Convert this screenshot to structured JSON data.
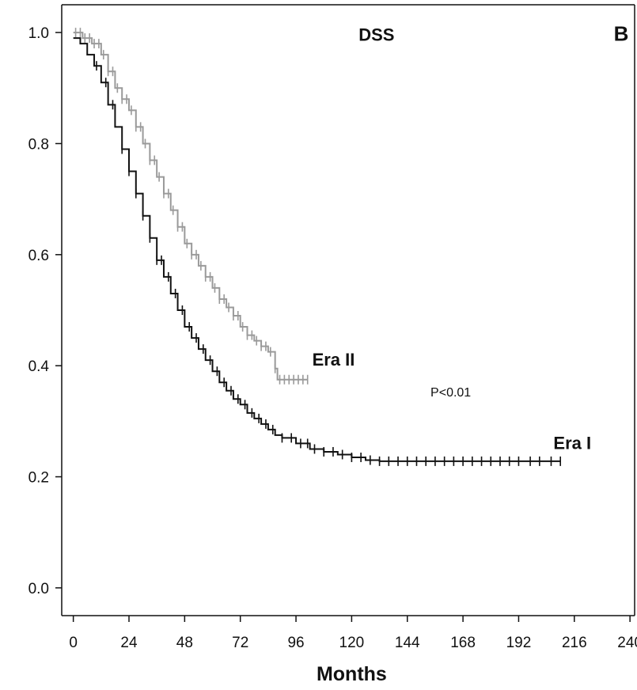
{
  "chart_data": {
    "type": "line",
    "title": "DSS",
    "panel_label": "B",
    "xlabel": "Months",
    "ylabel": "",
    "xlim": [
      -5,
      242
    ],
    "ylim": [
      -0.05,
      1.05
    ],
    "x_ticks": [
      0,
      24,
      48,
      72,
      96,
      120,
      144,
      168,
      192,
      216,
      240
    ],
    "x_tick_labels": [
      "0",
      "24",
      "48",
      "72",
      "96",
      "120",
      "144",
      "168",
      "192",
      "216",
      "240"
    ],
    "y_ticks": [
      0.0,
      0.2,
      0.4,
      0.6,
      0.8,
      1.0
    ],
    "y_tick_labels": [
      "0.0",
      "0.2",
      "0.4",
      "0.6",
      "0.8",
      "1.0"
    ],
    "annotations": [
      {
        "text": "P<0.01",
        "x": 154,
        "y": 0.345
      }
    ],
    "series": [
      {
        "name": "Era I",
        "color": "#111111",
        "step": true,
        "label_at": {
          "x": 207,
          "y": 0.25
        },
        "points": [
          [
            0,
            0.99
          ],
          [
            3,
            0.98
          ],
          [
            6,
            0.96
          ],
          [
            9,
            0.94
          ],
          [
            12,
            0.91
          ],
          [
            15,
            0.87
          ],
          [
            18,
            0.83
          ],
          [
            21,
            0.79
          ],
          [
            24,
            0.75
          ],
          [
            27,
            0.71
          ],
          [
            30,
            0.67
          ],
          [
            33,
            0.63
          ],
          [
            36,
            0.59
          ],
          [
            39,
            0.56
          ],
          [
            42,
            0.53
          ],
          [
            45,
            0.5
          ],
          [
            48,
            0.47
          ],
          [
            51,
            0.45
          ],
          [
            54,
            0.43
          ],
          [
            57,
            0.41
          ],
          [
            60,
            0.39
          ],
          [
            63,
            0.37
          ],
          [
            66,
            0.355
          ],
          [
            69,
            0.34
          ],
          [
            72,
            0.33
          ],
          [
            75,
            0.315
          ],
          [
            78,
            0.305
          ],
          [
            81,
            0.295
          ],
          [
            84,
            0.285
          ],
          [
            87,
            0.275
          ],
          [
            90,
            0.27
          ],
          [
            96,
            0.26
          ],
          [
            102,
            0.25
          ],
          [
            108,
            0.245
          ],
          [
            114,
            0.24
          ],
          [
            120,
            0.235
          ],
          [
            126,
            0.23
          ],
          [
            132,
            0.228
          ],
          [
            144,
            0.228
          ],
          [
            168,
            0.228
          ],
          [
            192,
            0.228
          ],
          [
            210,
            0.228
          ]
        ],
        "censor_x": [
          10,
          14,
          17,
          21,
          24,
          27,
          30,
          33,
          36,
          38,
          41,
          44,
          47,
          50,
          53,
          56,
          59,
          62,
          65,
          68,
          71,
          74,
          77,
          80,
          83,
          86,
          90,
          94,
          98,
          101,
          104,
          108,
          112,
          116,
          120,
          124,
          128,
          132,
          136,
          140,
          144,
          148,
          152,
          156,
          160,
          164,
          168,
          172,
          176,
          180,
          184,
          188,
          192,
          197,
          201,
          206,
          210
        ]
      },
      {
        "name": "Era II",
        "color": "#9a9a9a",
        "step": true,
        "label_at": {
          "x": 103,
          "y": 0.4
        },
        "points": [
          [
            0,
            1.0
          ],
          [
            4,
            0.99
          ],
          [
            8,
            0.98
          ],
          [
            12,
            0.96
          ],
          [
            15,
            0.93
          ],
          [
            18,
            0.9
          ],
          [
            21,
            0.88
          ],
          [
            24,
            0.86
          ],
          [
            27,
            0.83
          ],
          [
            30,
            0.8
          ],
          [
            33,
            0.77
          ],
          [
            36,
            0.74
          ],
          [
            39,
            0.71
          ],
          [
            42,
            0.68
          ],
          [
            45,
            0.65
          ],
          [
            48,
            0.62
          ],
          [
            51,
            0.6
          ],
          [
            54,
            0.58
          ],
          [
            57,
            0.56
          ],
          [
            60,
            0.54
          ],
          [
            63,
            0.52
          ],
          [
            66,
            0.505
          ],
          [
            69,
            0.49
          ],
          [
            72,
            0.47
          ],
          [
            75,
            0.455
          ],
          [
            78,
            0.445
          ],
          [
            81,
            0.435
          ],
          [
            84,
            0.425
          ],
          [
            87,
            0.395
          ],
          [
            88,
            0.375
          ],
          [
            101,
            0.375
          ]
        ],
        "censor_x": [
          1,
          3,
          5,
          7,
          9,
          11,
          13,
          15,
          17,
          19,
          21,
          23,
          25,
          27,
          29,
          31,
          33,
          35,
          37,
          39,
          41,
          43,
          45,
          47,
          49,
          51,
          53,
          55,
          57,
          59,
          61,
          63,
          65,
          67,
          69,
          71,
          73,
          75,
          77,
          79,
          81,
          83,
          85,
          87,
          89,
          91,
          93,
          95,
          97,
          99,
          101
        ]
      }
    ],
    "grid": false,
    "legend": "none"
  }
}
